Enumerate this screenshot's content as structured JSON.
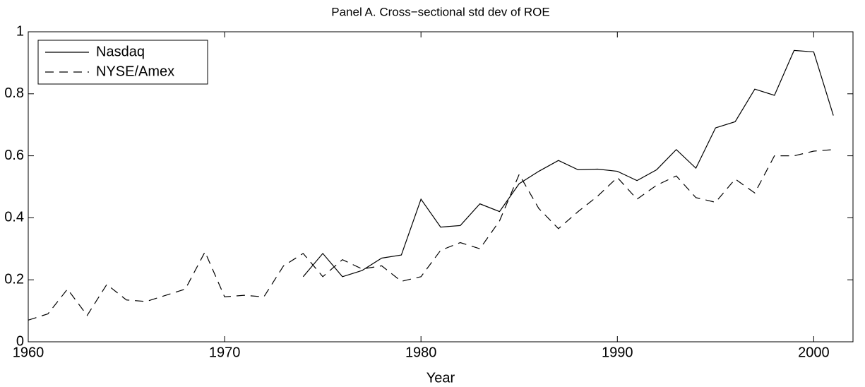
{
  "chart_data": {
    "type": "line",
    "title": "Panel A. Cross−sectional std dev of ROE",
    "xlabel": "Year",
    "x": [
      1960,
      1961,
      1962,
      1963,
      1964,
      1965,
      1966,
      1967,
      1968,
      1969,
      1970,
      1971,
      1972,
      1973,
      1974,
      1975,
      1976,
      1977,
      1978,
      1979,
      1980,
      1981,
      1982,
      1983,
      1984,
      1985,
      1986,
      1987,
      1988,
      1989,
      1990,
      1991,
      1992,
      1993,
      1994,
      1995,
      1996,
      1997,
      1998,
      1999,
      2000,
      2001
    ],
    "series": [
      {
        "name": "Nasdaq",
        "color": "#000000",
        "linestyle": "solid",
        "values": [
          null,
          null,
          null,
          null,
          null,
          null,
          null,
          null,
          null,
          null,
          null,
          null,
          null,
          null,
          0.21,
          0.285,
          0.21,
          0.23,
          0.27,
          0.28,
          0.46,
          0.37,
          0.375,
          0.445,
          0.42,
          0.51,
          0.55,
          0.585,
          0.555,
          0.557,
          0.55,
          0.52,
          0.555,
          0.62,
          0.56,
          0.69,
          0.71,
          0.815,
          0.795,
          0.94,
          0.935,
          0.73
        ]
      },
      {
        "name": "NYSE/Amex",
        "color": "#000000",
        "linestyle": "dashed",
        "values": [
          0.07,
          0.09,
          0.17,
          0.085,
          0.185,
          0.135,
          0.13,
          0.15,
          0.17,
          0.29,
          0.145,
          0.15,
          0.145,
          0.245,
          0.285,
          0.21,
          0.265,
          0.235,
          0.245,
          0.195,
          0.21,
          0.295,
          0.32,
          0.3,
          0.39,
          0.54,
          0.43,
          0.365,
          0.42,
          0.47,
          0.53,
          0.46,
          0.505,
          0.535,
          0.465,
          0.45,
          0.525,
          0.48,
          0.6,
          0.6,
          0.615,
          0.62
        ]
      }
    ],
    "xlim": [
      1960,
      2002
    ],
    "xticks": [
      1960,
      1970,
      1980,
      1990,
      2000
    ],
    "ylim": [
      0,
      1
    ],
    "yticks": [
      0,
      0.2,
      0.4,
      0.6,
      0.8,
      1
    ],
    "legend": "upper left"
  }
}
